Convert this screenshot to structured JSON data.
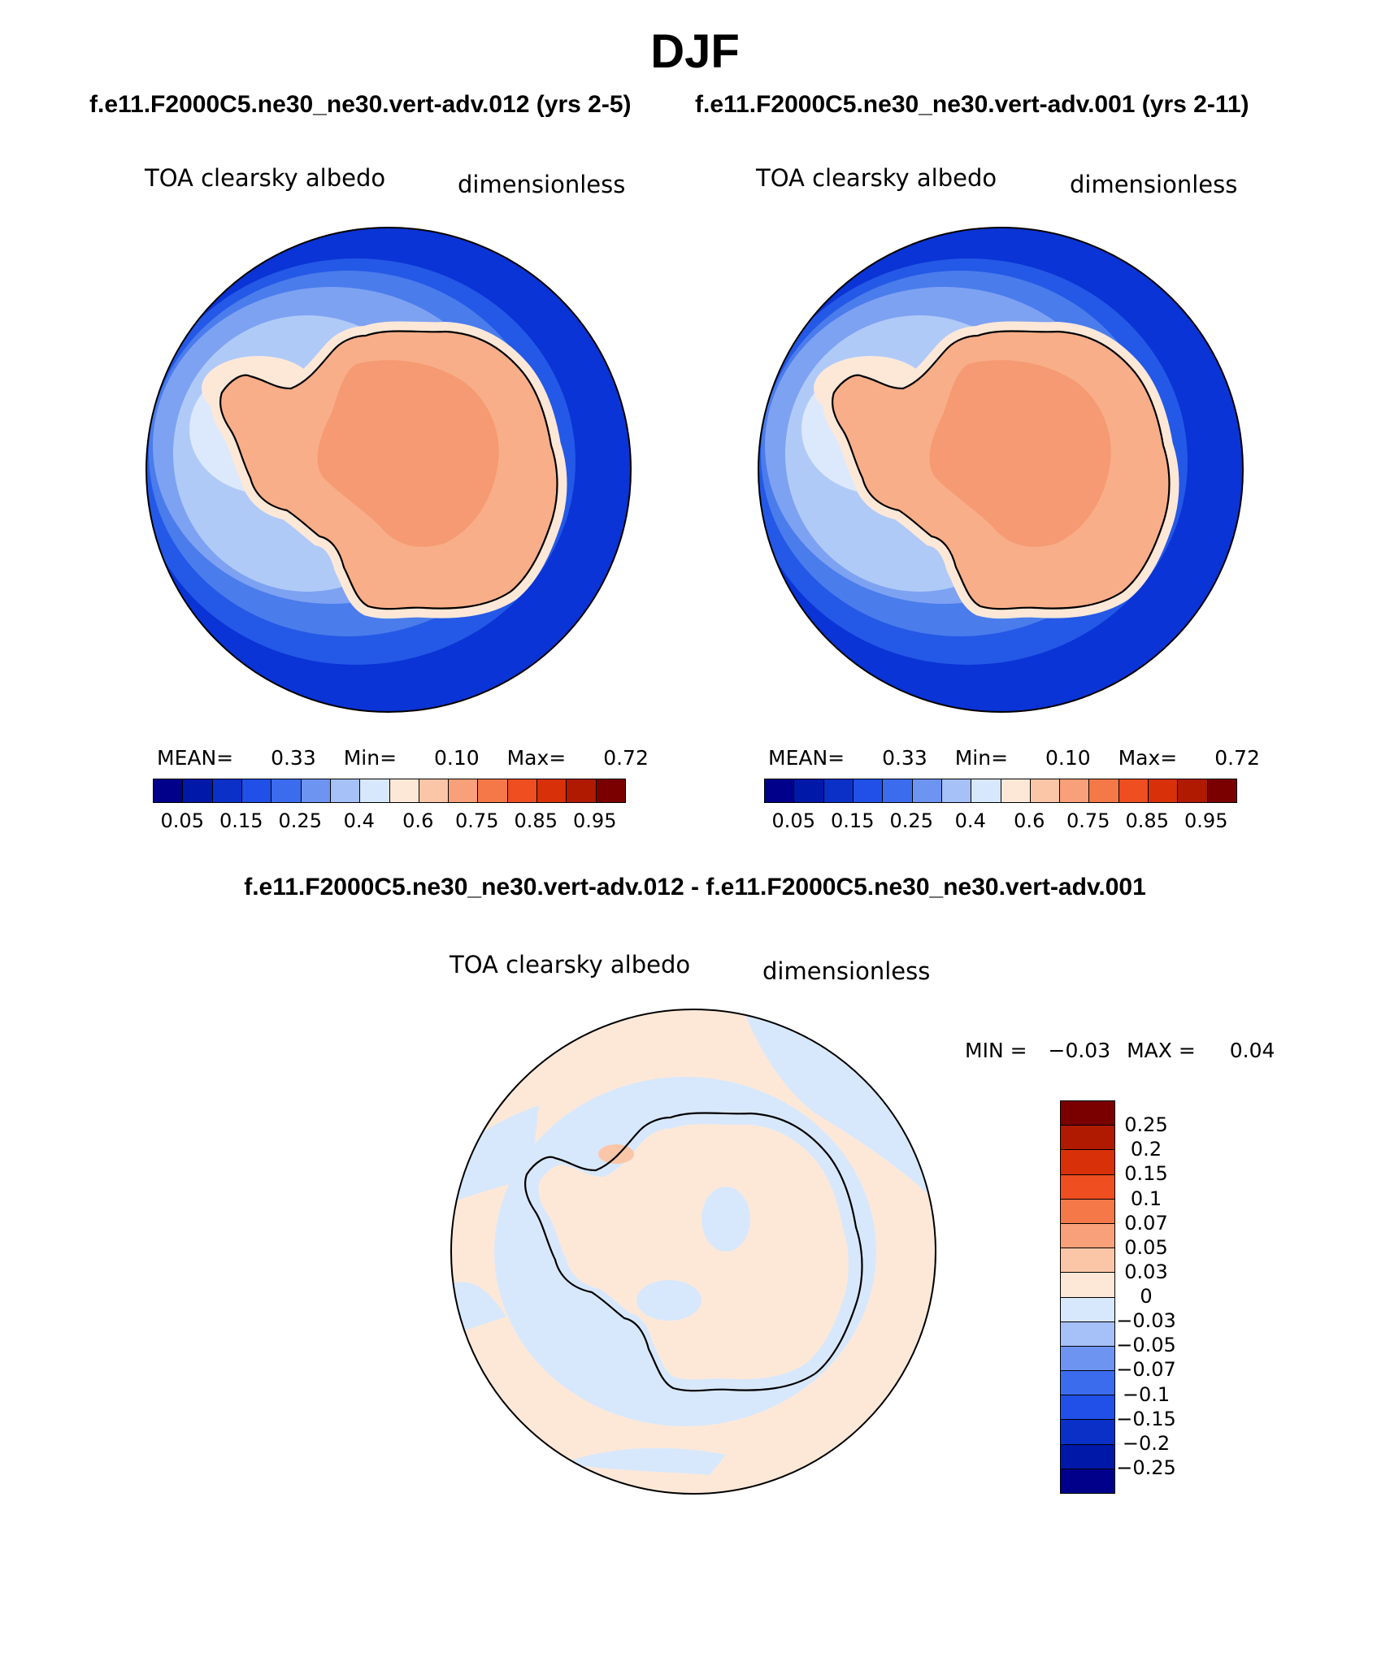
{
  "title": "DJF",
  "panels": {
    "left_case": "f.e11.F2000C5.ne30_ne30.vert-adv.012 (yrs 2-5)",
    "right_case": "f.e11.F2000C5.ne30_ne30.vert-adv.001 (yrs 2-11)",
    "diff_case": "f.e11.F2000C5.ne30_ne30.vert-adv.012 - f.e11.F2000C5.ne30_ne30.vert-adv.001",
    "variable": "TOA clearsky albedo",
    "units": "dimensionless"
  },
  "left_stats": {
    "mean_label": "MEAN=",
    "mean": "0.33",
    "min_label": "Min=",
    "min": "0.10",
    "max_label": "Max=",
    "max": "0.72"
  },
  "right_stats": {
    "mean_label": "MEAN=",
    "mean": "0.33",
    "min_label": "Min=",
    "min": "0.10",
    "max_label": "Max=",
    "max": "0.72"
  },
  "diff_stats": {
    "min_label": "MIN =",
    "min": "−0.03",
    "max_label": "MAX =",
    "max": "0.04"
  },
  "colorbar_main": {
    "colors": [
      "#00008b",
      "#0018a8",
      "#0a30c8",
      "#2050e8",
      "#3c6cee",
      "#6e94f2",
      "#a6c0f8",
      "#d8e8fc",
      "#fde8d8",
      "#fbc6a8",
      "#f8a07a",
      "#f47848",
      "#ee4e20",
      "#d83008",
      "#b01a00",
      "#7a0000"
    ],
    "ticks": [
      "0.05",
      "0.15",
      "0.25",
      "0.4",
      "0.6",
      "0.75",
      "0.85",
      "0.95"
    ]
  },
  "colorbar_diff": {
    "colors_top_to_bottom": [
      "#7a0000",
      "#b01a00",
      "#d83008",
      "#ee4e20",
      "#f47848",
      "#f8a07a",
      "#fbc6a8",
      "#fde8d8",
      "#d8e8fc",
      "#a6c0f8",
      "#6e94f2",
      "#3c6cee",
      "#2050e8",
      "#0a30c8",
      "#0018a8",
      "#00008b"
    ],
    "ticks": [
      "0.25",
      "0.2",
      "0.15",
      "0.1",
      "0.07",
      "0.05",
      "0.03",
      "0",
      "−0.03",
      "−0.05",
      "−0.07",
      "−0.1",
      "−0.15",
      "−0.2",
      "−0.25"
    ]
  },
  "colors": {
    "ocean_main": "#0a34d6",
    "interior_main": "#f8ae88",
    "plateau_main": "#f59a72",
    "diff_background": "#fde8d8",
    "diff_negative": "#d8e8fc",
    "diff_positive": "#fbc6a8",
    "coast": "#000000"
  }
}
